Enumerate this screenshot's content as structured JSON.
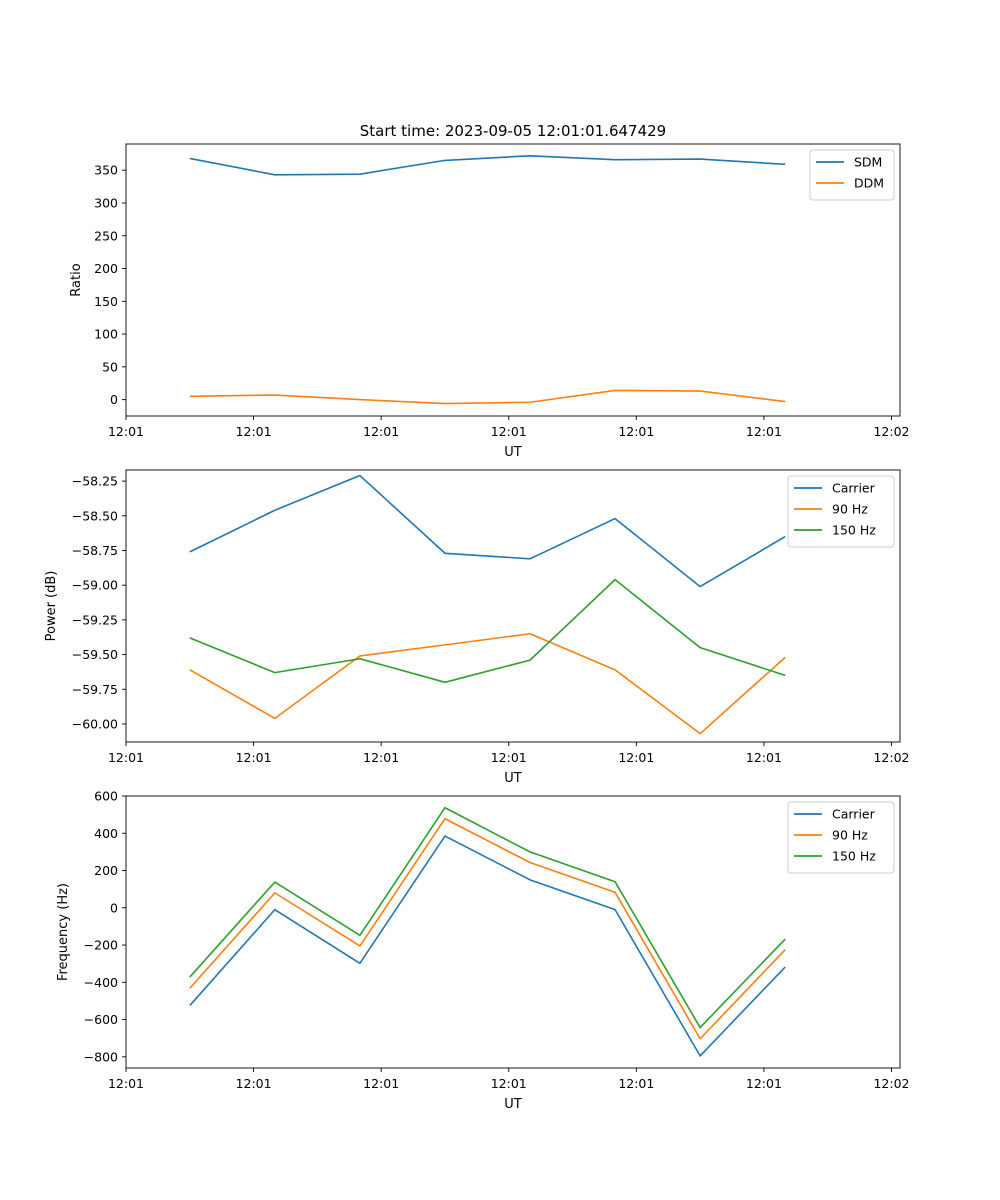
{
  "figure_title": "Start time: 2023-09-05 12:01:01.647429",
  "colors": {
    "c1": "#1f77b4",
    "c2": "#ff7f0e",
    "c3": "#2ca02c"
  },
  "chart_data": [
    {
      "type": "line",
      "title": "Start time: 2023-09-05 12:01:01.647429",
      "xlabel": "UT",
      "ylabel": "Ratio",
      "xlim": [
        0,
        9.1
      ],
      "ylim": [
        -25,
        390
      ],
      "x": [
        0.75,
        1.75,
        2.75,
        3.75,
        4.75,
        5.75,
        6.75,
        7.75
      ],
      "xticks": [
        0,
        1.5,
        3,
        4.5,
        6,
        7.5,
        9
      ],
      "xtick_labels": [
        "12:01",
        "12:01",
        "12:01",
        "12:01",
        "12:01",
        "12:01",
        "12:02"
      ],
      "yticks": [
        0,
        50,
        100,
        150,
        200,
        250,
        300,
        350
      ],
      "ytick_labels": [
        "0",
        "50",
        "100",
        "150",
        "200",
        "250",
        "300",
        "350"
      ],
      "legend": "top-right",
      "series": [
        {
          "name": "SDM",
          "color": "#1f77b4",
          "values": [
            368,
            343,
            344,
            365,
            372,
            366,
            367,
            359
          ]
        },
        {
          "name": "DDM",
          "color": "#ff7f0e",
          "values": [
            5,
            7,
            0,
            -6,
            -4,
            14,
            13,
            -3
          ]
        }
      ]
    },
    {
      "type": "line",
      "title": "",
      "xlabel": "UT",
      "ylabel": "Power (dB)",
      "xlim": [
        0,
        9.1
      ],
      "ylim": [
        -60.13,
        -58.17
      ],
      "x": [
        0.75,
        1.75,
        2.75,
        3.75,
        4.75,
        5.75,
        6.75,
        7.75
      ],
      "xticks": [
        0,
        1.5,
        3,
        4.5,
        6,
        7.5,
        9
      ],
      "xtick_labels": [
        "12:01",
        "12:01",
        "12:01",
        "12:01",
        "12:01",
        "12:01",
        "12:02"
      ],
      "yticks": [
        -60.0,
        -59.75,
        -59.5,
        -59.25,
        -59.0,
        -58.75,
        -58.5,
        -58.25
      ],
      "ytick_labels": [
        "−60.00",
        "−59.75",
        "−59.50",
        "−59.25",
        "−59.00",
        "−58.75",
        "−58.50",
        "−58.25"
      ],
      "legend": "top-right",
      "series": [
        {
          "name": "Carrier",
          "color": "#1f77b4",
          "values": [
            -58.76,
            -58.46,
            -58.21,
            -58.77,
            -58.81,
            -58.52,
            -59.01,
            -58.65
          ]
        },
        {
          "name": "90 Hz",
          "color": "#ff7f0e",
          "values": [
            -59.61,
            -59.96,
            -59.51,
            -59.43,
            -59.35,
            -59.61,
            -60.07,
            -59.52
          ]
        },
        {
          "name": "150 Hz",
          "color": "#2ca02c",
          "values": [
            -59.38,
            -59.63,
            -59.53,
            -59.7,
            -59.54,
            -58.96,
            -59.45,
            -59.65
          ]
        }
      ]
    },
    {
      "type": "line",
      "title": "",
      "xlabel": "UT",
      "ylabel": "Frequency (Hz)",
      "xlim": [
        0,
        9.1
      ],
      "ylim": [
        -860,
        600
      ],
      "x": [
        0.75,
        1.75,
        2.75,
        3.75,
        4.75,
        5.75,
        6.75,
        7.75
      ],
      "xticks": [
        0,
        1.5,
        3,
        4.5,
        6,
        7.5,
        9
      ],
      "xtick_labels": [
        "12:01",
        "12:01",
        "12:01",
        "12:01",
        "12:01",
        "12:01",
        "12:02"
      ],
      "yticks": [
        -800,
        -600,
        -400,
        -200,
        0,
        200,
        400,
        600
      ],
      "ytick_labels": [
        "−800",
        "−600",
        "−400",
        "−200",
        "0",
        "200",
        "400",
        "600"
      ],
      "legend": "top-right",
      "series": [
        {
          "name": "Carrier",
          "color": "#1f77b4",
          "values": [
            -525,
            -10,
            -298,
            385,
            150,
            -10,
            -795,
            -318
          ]
        },
        {
          "name": "90 Hz",
          "color": "#ff7f0e",
          "values": [
            -432,
            80,
            -205,
            478,
            243,
            83,
            -703,
            -225
          ]
        },
        {
          "name": "150 Hz",
          "color": "#2ca02c",
          "values": [
            -372,
            138,
            -148,
            537,
            300,
            140,
            -643,
            -168
          ]
        }
      ]
    }
  ]
}
